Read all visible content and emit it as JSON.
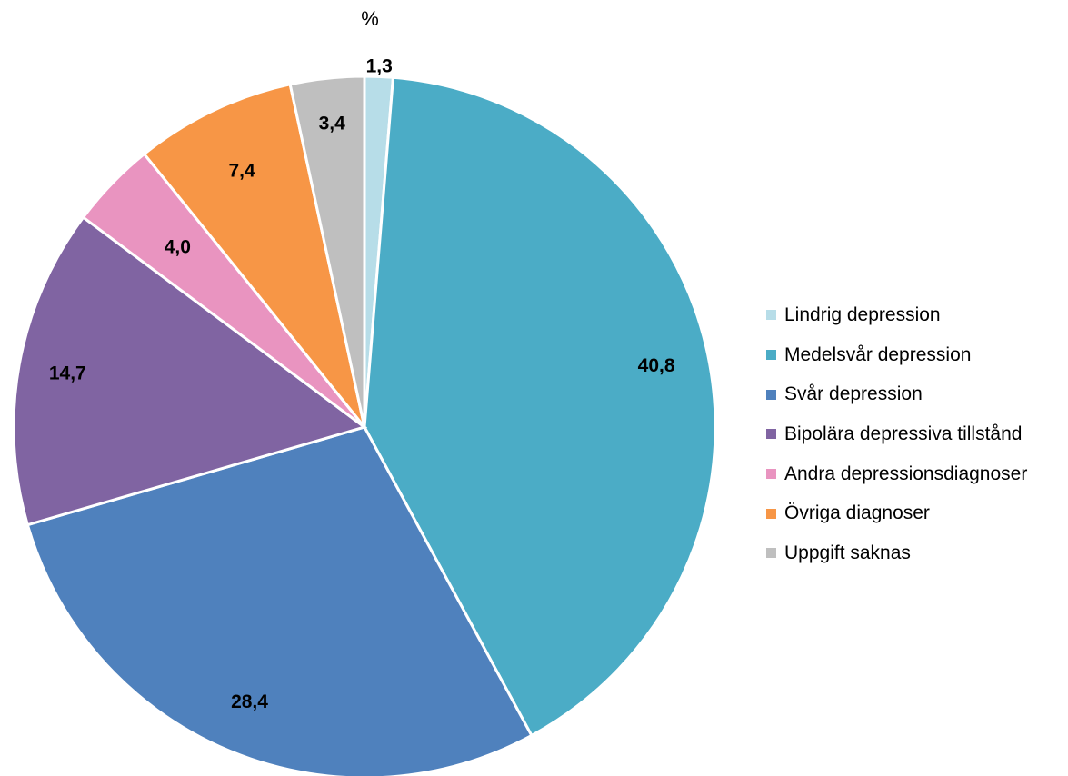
{
  "chart_data": {
    "type": "pie",
    "unit_label": "%",
    "categories": [
      "Lindrig depression",
      "Medelsvår depression",
      "Svår depression",
      "Bipolära depressiva tillstånd",
      "Andra depressionsdiagnoser",
      "Övriga diagnoser",
      "Uppgift saknas"
    ],
    "values": [
      1.3,
      40.8,
      28.4,
      14.7,
      4.0,
      7.4,
      3.4
    ],
    "value_labels": [
      "1,3",
      "40,8",
      "28,4",
      "14,7",
      "4,0",
      "7,4",
      "3,4"
    ],
    "colors": [
      "#b7dde8",
      "#4bacc6",
      "#4f81bd",
      "#8064a2",
      "#e994c0",
      "#f79646",
      "#bfbfbf"
    ],
    "start_angle_deg": 0,
    "direction": "clockwise",
    "legend_position": "right"
  }
}
